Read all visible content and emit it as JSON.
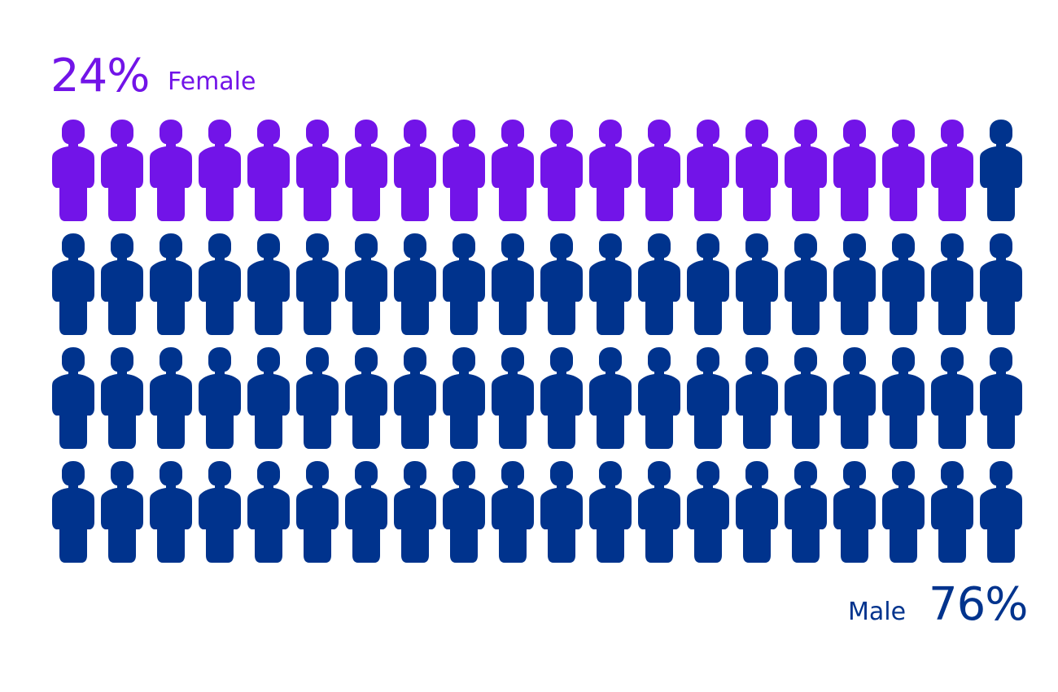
{
  "chart_data": {
    "type": "pictogram",
    "total_icons": 80,
    "columns": 20,
    "rows": 4,
    "categories": [
      "Female",
      "Male"
    ],
    "values": [
      24,
      76
    ],
    "series": [
      {
        "name": "Female",
        "value_label": "24%",
        "percent": 24,
        "icon_count": 19.2,
        "color": "#7214e8"
      },
      {
        "name": "Male",
        "value_label": "76%",
        "percent": 76,
        "icon_count": 60.8,
        "color": "#00338d"
      }
    ],
    "icon": "person-icon",
    "annotations": [
      {
        "text": "24%",
        "target": "Female"
      },
      {
        "text": "76%",
        "target": "Male"
      }
    ]
  },
  "labels": {
    "female_percent": "24%",
    "female_name": "Female",
    "male_name": "Male",
    "male_percent": "76%"
  },
  "colors": {
    "female": "#7214e8",
    "male": "#00338d",
    "background": "#ffffff"
  }
}
